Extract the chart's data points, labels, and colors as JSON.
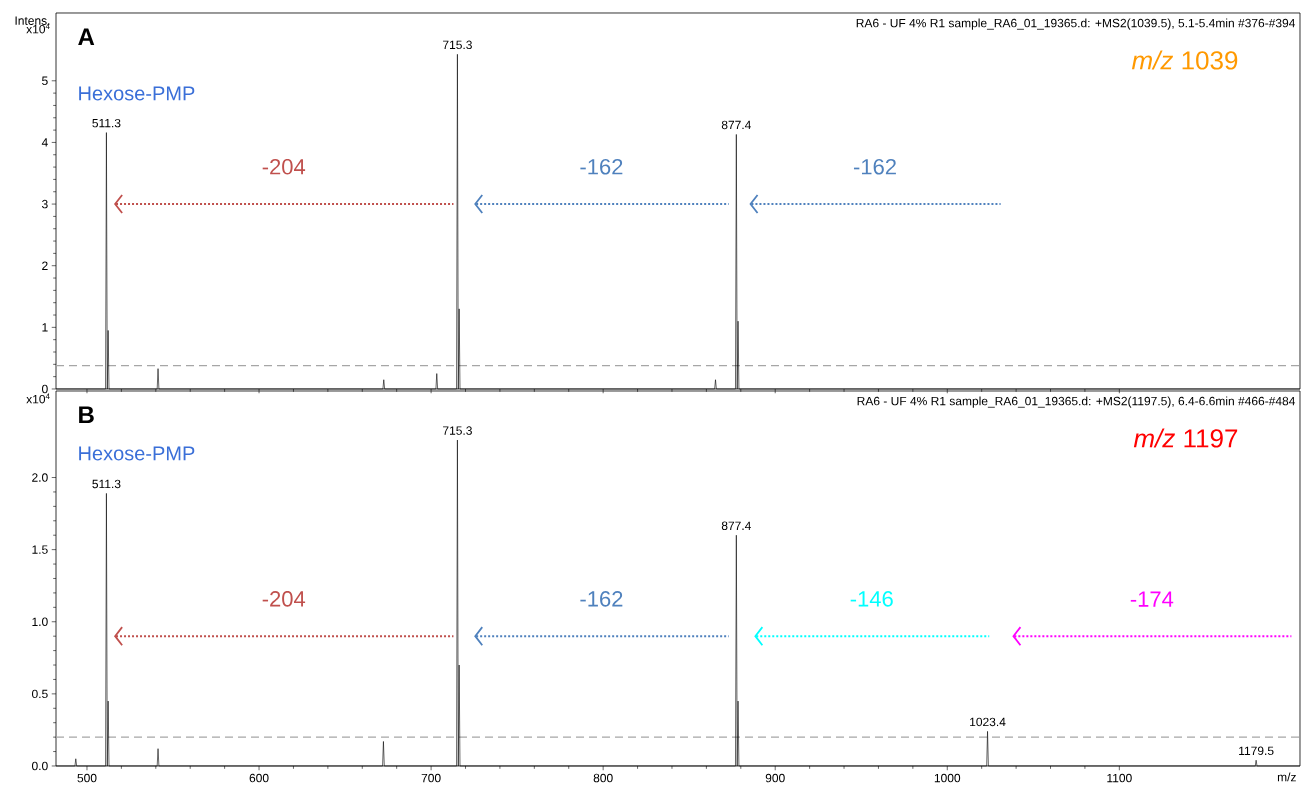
{
  "chart_data": [
    {
      "type": "line",
      "ylabel": "Intens.",
      "xlim": [
        482,
        1205
      ],
      "ylim": [
        0,
        6.1
      ],
      "yticks": [
        0,
        1,
        2,
        3,
        4,
        5
      ],
      "tick_labels": "y",
      "annotations": [
        "A",
        "RA6 - UF 4% R1 sample_RA6_01_19365.d: +MS2(1039.5), 5.1-5.4min #376-#394",
        "Hexose-PMP",
        "*m/z* 1039",
        "x10$^{4}$",
        {
          "text": "511.3",
          "x": 511.3,
          "y": 4.16
        },
        {
          "text": "715.3",
          "x": 715.3,
          "y": 5.43
        },
        {
          "text": "877.4",
          "x": 877.4,
          "y": 4.13
        }
      ],
      "ref_lines": [
        {
          "axis": "y",
          "value": 0.38,
          "color": "#a6a6a6",
          "line_style": "dashed"
        }
      ],
      "series": [
        {
          "color": "#000000",
          "x": [
            482,
            510.8,
            511.3,
            511.8,
            512.3,
            512.8,
            540.8,
            541.3,
            541.8,
            672,
            672.5,
            673,
            702.8,
            703.3,
            703.8,
            714.8,
            715.3,
            715.8,
            716.3,
            716.8,
            864.8,
            865.3,
            865.8,
            876.9,
            877.4,
            877.9,
            878.4,
            878.9,
            1205
          ],
          "values": [
            0,
            0,
            4.16,
            0,
            0.95,
            0,
            0,
            0.33,
            0,
            0,
            0.15,
            0,
            0,
            0.25,
            0,
            0,
            5.43,
            0,
            1.3,
            0,
            0,
            0.15,
            0,
            0,
            4.13,
            0,
            1.1,
            0,
            0
          ]
        },
        {
          "name": "-204",
          "color": "#c0504d",
          "line_style": "dotted",
          "x": [
            515.7,
            713
          ],
          "values": [
            3,
            3
          ]
        },
        {
          "name": "-162",
          "color": "#4f81bd",
          "line_style": "dotted",
          "x": [
            725,
            873
          ],
          "values": [
            3,
            3
          ]
        },
        {
          "name": "-162",
          "color": "#4f81bd",
          "line_style": "dotted",
          "x": [
            885,
            1031
          ],
          "values": [
            3,
            3
          ]
        }
      ]
    },
    {
      "type": "line",
      "xlabel": "m/z",
      "xlim": [
        482,
        1205
      ],
      "ylim": [
        0,
        2.6
      ],
      "xticks": [
        500,
        600,
        700,
        800,
        900,
        1000,
        1100
      ],
      "yticks": [
        {
          "value": 0,
          "label": "0.0"
        },
        0.5,
        {
          "value": 1,
          "label": "1.0"
        },
        1.5,
        {
          "value": 2,
          "label": "2.0"
        }
      ],
      "annotations": [
        "B",
        "RA6 - UF 4% R1 sample_RA6_01_19365.d: +MS2(1197.5), 6.4-6.6min #466-#484",
        "Hexose-PMP",
        "*m/z* 1197",
        "x10$^{4}$",
        {
          "text": "511.3",
          "x": 511.3,
          "y": 1.89
        },
        {
          "text": "715.3",
          "x": 715.3,
          "y": 2.26
        },
        {
          "text": "877.4",
          "x": 877.4,
          "y": 1.6
        },
        {
          "text": "1023.4",
          "x": 1023.4,
          "y": 0.24
        },
        {
          "text": "1179.5",
          "x": 1179.5,
          "y": 0.04
        }
      ],
      "ref_lines": [
        {
          "axis": "y",
          "value": 0.2,
          "color": "#a6a6a6",
          "line_style": "dashed"
        }
      ],
      "series": [
        {
          "color": "#000000",
          "x": [
            482,
            493,
            493.5,
            494,
            510.8,
            511.3,
            511.8,
            512.3,
            512.8,
            540.8,
            541.3,
            541.8,
            671.8,
            672.3,
            672.8,
            714.8,
            715.3,
            715.8,
            716.3,
            716.8,
            876.9,
            877.4,
            877.9,
            878.4,
            878.9,
            1022.9,
            1023.4,
            1023.9,
            1179,
            1179.5,
            1180,
            1205
          ],
          "values": [
            0,
            0,
            0.05,
            0,
            0,
            1.89,
            0,
            0.45,
            0,
            0,
            0.12,
            0,
            0,
            0.17,
            0,
            0,
            2.26,
            0,
            0.7,
            0,
            0,
            1.6,
            0,
            0.45,
            0,
            0,
            0.24,
            0,
            0,
            0.04,
            0,
            0
          ]
        },
        {
          "name": "-204",
          "color": "#c0504d",
          "line_style": "dotted",
          "x": [
            515.7,
            713
          ],
          "values": [
            0.9,
            0.9
          ]
        },
        {
          "name": "-162",
          "color": "#4f81bd",
          "line_style": "dotted",
          "x": [
            725,
            873
          ],
          "values": [
            0.9,
            0.9
          ]
        },
        {
          "name": "-146",
          "color": "#00ffff",
          "line_style": "dotted",
          "x": [
            887.8,
            1024.4
          ],
          "values": [
            0.9,
            0.9
          ]
        },
        {
          "name": "-174",
          "color": "#ff00ff",
          "line_style": "dotted",
          "x": [
            1037.8,
            1200
          ],
          "values": [
            0.9,
            0.9
          ]
        }
      ]
    }
  ]
}
